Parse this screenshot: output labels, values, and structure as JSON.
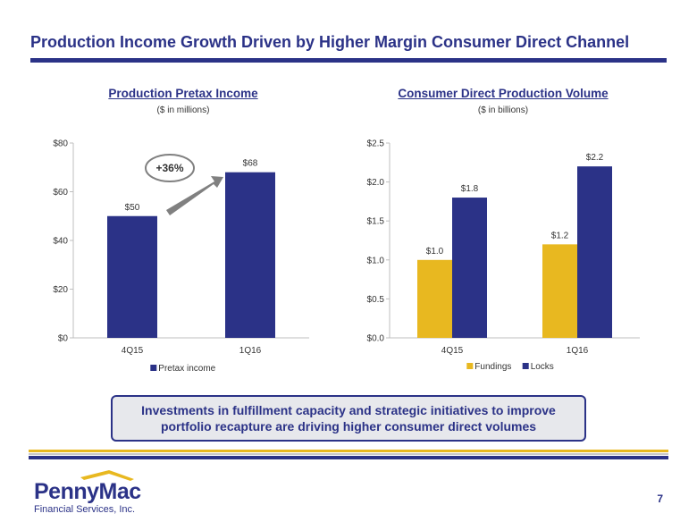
{
  "header": {
    "title": "Production Income Growth Driven by Higher Margin Consumer Direct Channel"
  },
  "left_chart": {
    "title": "Production Pretax Income",
    "subtitle": "($ in millions)",
    "growth_label": "+36%"
  },
  "right_chart": {
    "title": "Consumer Direct Production Volume",
    "subtitle": "($ in billions)"
  },
  "chart_data": [
    {
      "type": "bar",
      "title": "Production Pretax Income",
      "categories": [
        "4Q15",
        "1Q16"
      ],
      "series": [
        {
          "name": "Pretax income",
          "values": [
            50,
            68
          ],
          "labels": [
            "$50",
            "$68"
          ],
          "color": "#2b3287"
        }
      ],
      "ylim": [
        0,
        80
      ],
      "yticks": [
        0,
        20,
        40,
        60,
        80
      ],
      "ytick_labels": [
        "$0",
        "$20",
        "$40",
        "$60",
        "$80"
      ],
      "legend": "bottom",
      "grid": false
    },
    {
      "type": "bar",
      "title": "Consumer Direct Production Volume",
      "categories": [
        "4Q15",
        "1Q16"
      ],
      "series": [
        {
          "name": "Fundings",
          "values": [
            1.0,
            1.2
          ],
          "labels": [
            "$1.0",
            "$1.2"
          ],
          "color": "#e8b820"
        },
        {
          "name": "Locks",
          "values": [
            1.8,
            2.2
          ],
          "labels": [
            "$1.8",
            "$2.2"
          ],
          "color": "#2b3287"
        }
      ],
      "ylim": [
        0,
        2.5
      ],
      "yticks": [
        0,
        0.5,
        1.0,
        1.5,
        2.0,
        2.5
      ],
      "ytick_labels": [
        "$0.0",
        "$0.5",
        "$1.0",
        "$1.5",
        "$2.0",
        "$2.5"
      ],
      "legend": "bottom",
      "grid": false
    }
  ],
  "callout": {
    "text": "Investments in fulfillment capacity and strategic initiatives to improve portfolio recapture are driving higher consumer direct volumes"
  },
  "logo": {
    "name": "PennyMac",
    "tagline": "Financial Services, Inc."
  },
  "footer": {
    "page_number": "7"
  },
  "colors": {
    "brand_blue": "#2b3287",
    "brand_yellow": "#e8b820"
  }
}
